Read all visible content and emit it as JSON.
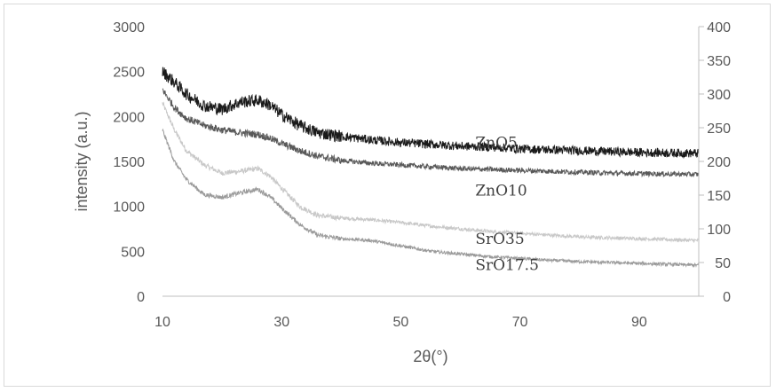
{
  "chart_data": {
    "type": "line",
    "title": "",
    "xlabel": "2θ(°)",
    "ylabel": "intensity (a.u.)",
    "xlim": [
      10,
      100
    ],
    "ylim": [
      0,
      3000
    ],
    "y2lim": [
      0,
      400
    ],
    "grid": false,
    "legend": "none",
    "x_ticks": [
      "10",
      "30",
      "50",
      "70",
      "90"
    ],
    "y_ticks": [
      "0",
      "500",
      "1000",
      "1500",
      "2000",
      "2500",
      "3000"
    ],
    "y2_ticks": [
      "0",
      "50",
      "100",
      "150",
      "200",
      "250",
      "300",
      "350",
      "400"
    ],
    "series": [
      {
        "name": "ZnO5",
        "color": "#1a1a1a",
        "noise": 70,
        "x": [
          10,
          12,
          14,
          17,
          20,
          23,
          26,
          28,
          30,
          33,
          36,
          40,
          45,
          50,
          55,
          60,
          65,
          70,
          75,
          80,
          85,
          90,
          95,
          100
        ],
        "y": [
          2500,
          2380,
          2250,
          2120,
          2080,
          2160,
          2180,
          2130,
          2020,
          1900,
          1820,
          1780,
          1740,
          1710,
          1690,
          1670,
          1660,
          1640,
          1630,
          1620,
          1610,
          1600,
          1595,
          1590
        ]
      },
      {
        "name": "ZnO10",
        "color": "#595959",
        "noise": 40,
        "x": [
          10,
          12,
          14,
          17,
          20,
          23,
          26,
          28,
          30,
          33,
          36,
          40,
          45,
          50,
          55,
          60,
          65,
          70,
          75,
          80,
          85,
          90,
          95,
          100
        ],
        "y": [
          2300,
          2100,
          1980,
          1900,
          1850,
          1820,
          1800,
          1760,
          1700,
          1620,
          1560,
          1510,
          1480,
          1460,
          1440,
          1420,
          1410,
          1400,
          1390,
          1380,
          1370,
          1365,
          1360,
          1355
        ]
      },
      {
        "name": "SrO35",
        "color": "#c8c8c8",
        "noise": 28,
        "x": [
          10,
          12,
          14,
          17,
          20,
          23,
          26,
          28,
          30,
          33,
          36,
          40,
          45,
          50,
          55,
          60,
          65,
          70,
          75,
          80,
          85,
          90,
          95,
          100
        ],
        "y": [
          2150,
          1850,
          1620,
          1460,
          1370,
          1390,
          1420,
          1340,
          1200,
          1000,
          900,
          870,
          850,
          820,
          780,
          750,
          720,
          700,
          680,
          660,
          650,
          640,
          630,
          620
        ]
      },
      {
        "name": "SrO17.5",
        "color": "#9a9a9a",
        "noise": 25,
        "x": [
          10,
          12,
          14,
          17,
          20,
          23,
          26,
          28,
          30,
          33,
          36,
          40,
          45,
          50,
          55,
          60,
          65,
          70,
          75,
          80,
          85,
          90,
          95,
          100
        ],
        "y": [
          1850,
          1500,
          1300,
          1130,
          1100,
          1150,
          1190,
          1110,
          980,
          800,
          680,
          640,
          620,
          560,
          500,
          470,
          440,
          420,
          400,
          385,
          375,
          365,
          355,
          345
        ]
      }
    ],
    "annotations": [
      {
        "text": "ZnO5",
        "x": 62.5,
        "y": 1710
      },
      {
        "text": "ZnO10",
        "x": 62.5,
        "y": 1180
      },
      {
        "text": "SrO35",
        "x": 62.5,
        "y": 640
      },
      {
        "text": "SrO17.5",
        "x": 62.5,
        "y": 350
      }
    ]
  }
}
